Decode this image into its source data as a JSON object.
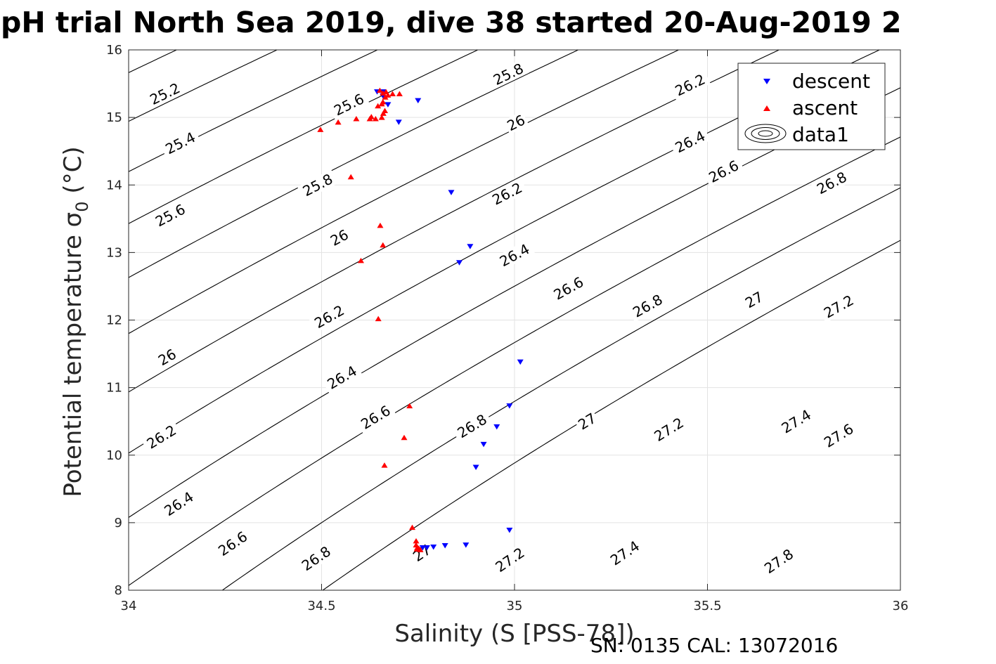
{
  "chart_data": {
    "type": "scatter",
    "title": "pH trial North Sea 2019, dive 38 started 20-Aug-2019 2",
    "xlabel": "Salinity (S [PSS-78])",
    "ylabel": "Potential temperature σ",
    "ylabel_sub": "0",
    "ylabel_unit": " (°C)",
    "xlim": [
      34,
      36
    ],
    "ylim": [
      8,
      16
    ],
    "xticks": [
      34,
      34.5,
      35,
      35.5,
      36
    ],
    "xtick_labels": [
      "34",
      "34.5",
      "35",
      "35.5",
      "36"
    ],
    "yticks": [
      8,
      9,
      10,
      11,
      12,
      13,
      14,
      15,
      16
    ],
    "ytick_labels": [
      "8",
      "9",
      "10",
      "11",
      "12",
      "13",
      "14",
      "15",
      "16"
    ],
    "grid": true,
    "legend_position": "top-right",
    "contour_levels": [
      25.2,
      25.4,
      25.6,
      25.8,
      26,
      26.2,
      26.4,
      26.6,
      26.8,
      27,
      27.2,
      27.4,
      27.6,
      27.8
    ],
    "contour_labels": [
      {
        "text": "25.2",
        "s": 34.094,
        "t": 15.35
      },
      {
        "text": "25.4",
        "s": 34.134,
        "t": 14.62
      },
      {
        "text": "25.6",
        "s": 34.108,
        "t": 13.55
      },
      {
        "text": "26",
        "s": 34.1,
        "t": 11.45
      },
      {
        "text": "26.2",
        "s": 34.085,
        "t": 10.27
      },
      {
        "text": "26.4",
        "s": 34.13,
        "t": 9.28
      },
      {
        "text": "26.6",
        "s": 34.27,
        "t": 8.69
      },
      {
        "text": "26.8",
        "s": 34.486,
        "t": 8.47
      },
      {
        "text": "25.6",
        "s": 34.571,
        "t": 15.19
      },
      {
        "text": "25.8",
        "s": 34.49,
        "t": 14.0
      },
      {
        "text": "26",
        "s": 34.546,
        "t": 13.22
      },
      {
        "text": "26.2",
        "s": 34.52,
        "t": 12.05
      },
      {
        "text": "26.4",
        "s": 34.553,
        "t": 11.15
      },
      {
        "text": "26.6",
        "s": 34.64,
        "t": 10.56
      },
      {
        "text": "27",
        "s": 34.76,
        "t": 8.55
      },
      {
        "text": "25.8",
        "s": 34.984,
        "t": 15.64
      },
      {
        "text": "26",
        "s": 35.004,
        "t": 14.92
      },
      {
        "text": "26.2",
        "s": 34.981,
        "t": 13.87
      },
      {
        "text": "26.4",
        "s": 35.0,
        "t": 12.96
      },
      {
        "text": "26.8",
        "s": 34.89,
        "t": 10.43
      },
      {
        "text": "27",
        "s": 35.188,
        "t": 10.5
      },
      {
        "text": "27.2",
        "s": 34.988,
        "t": 8.45
      },
      {
        "text": "26.2",
        "s": 35.455,
        "t": 15.48
      },
      {
        "text": "26.4",
        "s": 35.455,
        "t": 14.64
      },
      {
        "text": "26.6",
        "s": 35.542,
        "t": 14.2
      },
      {
        "text": "26.6",
        "s": 35.14,
        "t": 12.47
      },
      {
        "text": "26.8",
        "s": 35.345,
        "t": 12.21
      },
      {
        "text": "27",
        "s": 35.621,
        "t": 12.3
      },
      {
        "text": "27.2",
        "s": 35.4,
        "t": 10.38
      },
      {
        "text": "27.4",
        "s": 35.286,
        "t": 8.55
      },
      {
        "text": "26.8",
        "s": 35.822,
        "t": 14.03
      },
      {
        "text": "27.2",
        "s": 35.84,
        "t": 12.2
      },
      {
        "text": "27.4",
        "s": 35.73,
        "t": 10.5
      },
      {
        "text": "27.6",
        "s": 35.84,
        "t": 10.29
      },
      {
        "text": "27.8",
        "s": 35.685,
        "t": 8.43
      }
    ],
    "series": [
      {
        "name": "descent",
        "marker": "triangle-down",
        "color": "#0000ff",
        "points": [
          [
            34.644,
            15.38
          ],
          [
            34.659,
            15.38
          ],
          [
            34.659,
            15.32
          ],
          [
            34.672,
            15.19
          ],
          [
            34.75,
            15.25
          ],
          [
            34.7,
            14.93
          ],
          [
            34.836,
            13.89
          ],
          [
            34.885,
            13.09
          ],
          [
            34.857,
            12.85
          ],
          [
            35.015,
            11.38
          ],
          [
            34.987,
            10.73
          ],
          [
            34.954,
            10.42
          ],
          [
            34.92,
            10.16
          ],
          [
            34.9,
            9.82
          ],
          [
            34.987,
            8.89
          ],
          [
            34.874,
            8.67
          ],
          [
            34.82,
            8.66
          ],
          [
            34.79,
            8.64
          ],
          [
            34.773,
            8.63
          ],
          [
            34.762,
            8.63
          ]
        ]
      },
      {
        "name": "ascent",
        "marker": "triangle-up",
        "color": "#ff0000",
        "points": [
          [
            34.497,
            14.82
          ],
          [
            34.543,
            14.93
          ],
          [
            34.59,
            14.98
          ],
          [
            34.625,
            14.98
          ],
          [
            34.64,
            14.98
          ],
          [
            34.656,
            15.0
          ],
          [
            34.66,
            15.06
          ],
          [
            34.664,
            15.1
          ],
          [
            34.646,
            15.17
          ],
          [
            34.656,
            15.2
          ],
          [
            34.659,
            15.23
          ],
          [
            34.665,
            15.3
          ],
          [
            34.672,
            15.33
          ],
          [
            34.684,
            15.35
          ],
          [
            34.702,
            15.35
          ],
          [
            34.659,
            15.36
          ],
          [
            34.651,
            15.4
          ],
          [
            34.667,
            15.38
          ],
          [
            34.629,
            15.01
          ],
          [
            34.576,
            14.12
          ],
          [
            34.652,
            13.4
          ],
          [
            34.659,
            13.11
          ],
          [
            34.602,
            12.88
          ],
          [
            34.647,
            12.02
          ],
          [
            34.728,
            10.73
          ],
          [
            34.714,
            10.26
          ],
          [
            34.663,
            9.85
          ],
          [
            34.735,
            8.93
          ],
          [
            34.745,
            8.73
          ],
          [
            34.745,
            8.67
          ],
          [
            34.748,
            8.63
          ],
          [
            34.747,
            8.61
          ],
          [
            34.752,
            8.62
          ],
          [
            34.756,
            8.6
          ]
        ]
      }
    ],
    "legend_entries": [
      "descent",
      "ascent",
      "data1"
    ],
    "contour_color": "#000000"
  },
  "footer": {
    "text": "SN: 0135  CAL: 13072016"
  }
}
